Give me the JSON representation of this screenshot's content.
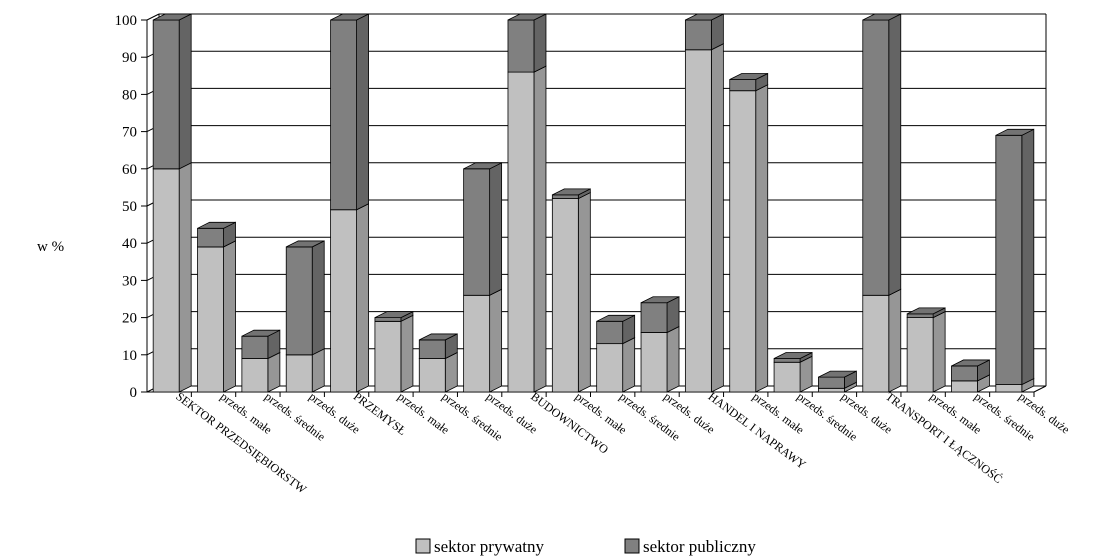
{
  "chart_data": {
    "type": "bar",
    "stacked": true,
    "three_d": true,
    "title": "",
    "xlabel": "",
    "ylabel": "w %",
    "ylim": [
      0,
      100
    ],
    "yticks": [
      0,
      10,
      20,
      30,
      40,
      50,
      60,
      70,
      80,
      90,
      100
    ],
    "grid": true,
    "legend_position": "bottom",
    "categories": [
      "SEKTOR PRZEDSIĘBIORSTW",
      "przeds. małe",
      "przeds. średnie",
      "przeds. duże",
      "PRZEMYSŁ",
      "przeds. małe",
      "przeds. średnie",
      "przeds. duże",
      "BUDOWNICTWO",
      "przeds. małe",
      "przeds. średnie",
      "przeds. duże",
      "HANDEL I NAPRAWY",
      "przeds. małe",
      "przeds. średnie",
      "przeds. duże",
      "TRANSPORT I ŁĄCZNOŚĆ",
      "przeds. małe",
      "przeds. średnie",
      "przeds. duże"
    ],
    "series": [
      {
        "name": "sektor prywatny",
        "color": "#c0c0c0",
        "values": [
          60,
          39,
          9,
          10,
          49,
          19,
          9,
          26,
          86,
          52,
          13,
          16,
          92,
          81,
          8,
          1,
          26,
          20,
          3,
          2
        ]
      },
      {
        "name": "sektor publiczny",
        "color": "#808080",
        "values": [
          40,
          5,
          6,
          29,
          51,
          1,
          5,
          34,
          14,
          1,
          6,
          8,
          8,
          3,
          1,
          3,
          74,
          1,
          4,
          67
        ]
      }
    ]
  }
}
